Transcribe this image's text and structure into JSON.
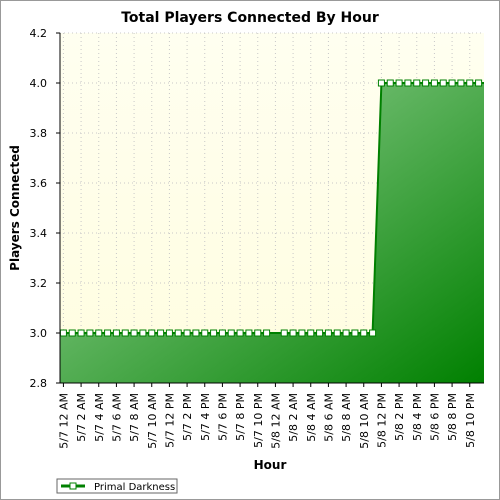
{
  "chart_data": {
    "type": "area",
    "title": "Total Players Connected By Hour",
    "xlabel": "Hour",
    "ylabel": "Players Connected",
    "ylim": [
      2.8,
      4.2
    ],
    "yticks": [
      "2.8",
      "3.0",
      "3.2",
      "3.4",
      "3.6",
      "3.8",
      "4.0",
      "4.2"
    ],
    "x": [
      "5/7 12 AM",
      "5/7 1 AM",
      "5/7 2 AM",
      "5/7 3 AM",
      "5/7 4 AM",
      "5/7 5 AM",
      "5/7 6 AM",
      "5/7 7 AM",
      "5/7 8 AM",
      "5/7 9 AM",
      "5/7 10 AM",
      "5/7 11 AM",
      "5/7 12 PM",
      "5/7 1 PM",
      "5/7 2 PM",
      "5/7 3 PM",
      "5/7 4 PM",
      "5/7 5 PM",
      "5/7 6 PM",
      "5/7 7 PM",
      "5/7 8 PM",
      "5/7 9 PM",
      "5/7 10 PM",
      "5/7 11 PM",
      "5/8 12 AM",
      "5/8 1 AM",
      "5/8 2 AM",
      "5/8 3 AM",
      "5/8 4 AM",
      "5/8 5 AM",
      "5/8 6 AM",
      "5/8 7 AM",
      "5/8 8 AM",
      "5/8 9 AM",
      "5/8 10 AM",
      "5/8 11 AM",
      "5/8 12 PM",
      "5/8 1 PM",
      "5/8 2 PM",
      "5/8 3 PM",
      "5/8 4 PM",
      "5/8 5 PM",
      "5/8 6 PM",
      "5/8 7 PM",
      "5/8 8 PM",
      "5/8 9 PM",
      "5/8 10 PM",
      "5/8 11 PM"
    ],
    "xtick_labels": [
      "5/7 12 AM",
      "5/7 2 AM",
      "5/7 4 AM",
      "5/7 6 AM",
      "5/7 8 AM",
      "5/7 10 AM",
      "5/7 12 PM",
      "5/7 2 PM",
      "5/7 4 PM",
      "5/7 6 PM",
      "5/7 8 PM",
      "5/7 10 PM",
      "5/8 12 AM",
      "5/8 2 AM",
      "5/8 4 AM",
      "5/8 6 AM",
      "5/8 8 AM",
      "5/8 10 AM",
      "5/8 12 PM",
      "5/8 2 PM",
      "5/8 4 PM",
      "5/8 6 PM",
      "5/8 8 PM",
      "5/8 10 PM"
    ],
    "series": [
      {
        "name": "Primal Darkness",
        "values": [
          3,
          3,
          3,
          3,
          3,
          3,
          3,
          3,
          3,
          3,
          3,
          3,
          3,
          3,
          3,
          3,
          3,
          3,
          3,
          3,
          3,
          3,
          3,
          3,
          3,
          3,
          3,
          3,
          3,
          3,
          3,
          3,
          3,
          3,
          3,
          3,
          4,
          4,
          4,
          4,
          4,
          4,
          4,
          4,
          4,
          4,
          4,
          4
        ]
      }
    ],
    "missing_markers": [
      24
    ],
    "grid": true,
    "legend_position": "bottom-left",
    "colors": {
      "plot_bg_top": "#fffff0",
      "plot_bg_bottom": "#fffde0",
      "area_light": "#a4d9a4",
      "area_dark": "#008000",
      "line": "#008000",
      "marker_fill": "#ffffff",
      "grid": "#c8c8c8"
    }
  }
}
